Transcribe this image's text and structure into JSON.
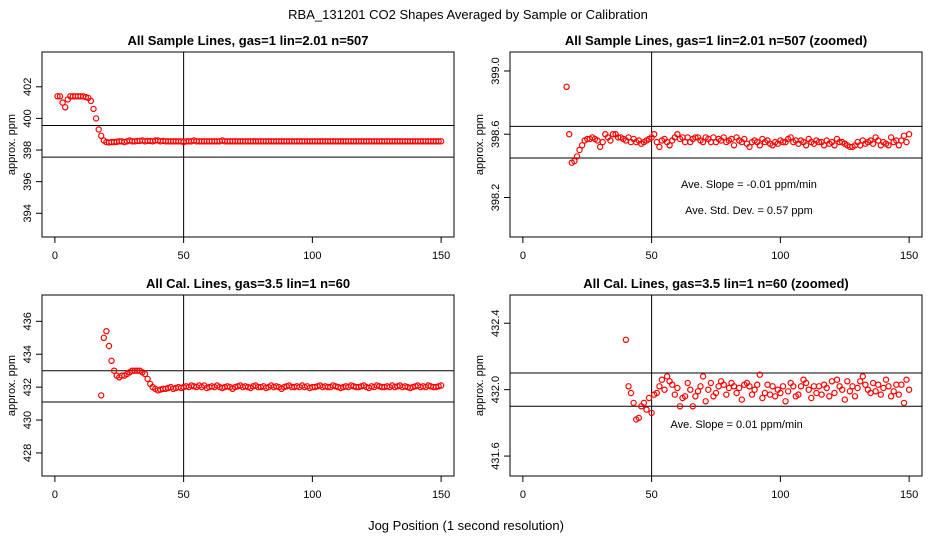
{
  "page": {
    "main_title": "RBA_131201  CO2 Shapes Averaged by Sample or Calibration",
    "xlabel": "Jog Position (1 second resolution)"
  },
  "colors": {
    "points": "#ff0000",
    "axis": "#000000",
    "background": "#ffffff"
  },
  "chart_data": [
    {
      "type": "scatter",
      "title": "All Sample Lines, gas=1 lin=2.01 n=507",
      "ylabel": "approx. ppm",
      "xlim": [
        -5,
        155
      ],
      "ylim": [
        392.5,
        404.2
      ],
      "xticks": [
        0,
        50,
        100,
        150
      ],
      "xtick_labels": [
        "0",
        "50",
        "100",
        "150"
      ],
      "yticks": [
        394,
        396,
        398,
        400,
        402
      ],
      "ytick_labels": [
        "394",
        "396",
        "398",
        "400",
        "402"
      ],
      "hlines": [
        399.55,
        397.55
      ],
      "vlines": [
        50
      ],
      "annotations": [],
      "x": [
        1,
        2,
        3,
        4,
        5,
        6,
        7,
        8,
        9,
        10,
        11,
        12,
        13,
        14,
        15,
        16,
        17,
        18,
        19,
        20,
        21,
        22,
        23,
        24,
        25,
        26,
        27,
        28,
        29,
        30,
        31,
        32,
        33,
        34,
        35,
        36,
        37,
        38,
        39,
        40,
        41,
        42,
        43,
        44,
        45,
        46,
        47,
        48,
        49,
        50,
        51,
        52,
        53,
        54,
        55,
        56,
        57,
        58,
        59,
        60,
        61,
        62,
        63,
        64,
        65,
        66,
        67,
        68,
        69,
        70,
        71,
        72,
        73,
        74,
        75,
        76,
        77,
        78,
        79,
        80,
        81,
        82,
        83,
        84,
        85,
        86,
        87,
        88,
        89,
        90,
        91,
        92,
        93,
        94,
        95,
        96,
        97,
        98,
        99,
        100,
        101,
        102,
        103,
        104,
        105,
        106,
        107,
        108,
        109,
        110,
        111,
        112,
        113,
        114,
        115,
        116,
        117,
        118,
        119,
        120,
        121,
        122,
        123,
        124,
        125,
        126,
        127,
        128,
        129,
        130,
        131,
        132,
        133,
        134,
        135,
        136,
        137,
        138,
        139,
        140,
        141,
        142,
        143,
        144,
        145,
        146,
        147,
        148,
        149,
        150
      ],
      "y": [
        401.4,
        401.4,
        401.0,
        400.7,
        401.2,
        401.4,
        401.4,
        401.4,
        401.4,
        401.4,
        401.4,
        401.35,
        401.3,
        401.1,
        400.6,
        400.0,
        399.3,
        398.9,
        398.6,
        398.5,
        398.48,
        398.5,
        398.5,
        398.52,
        398.55,
        398.55,
        398.5,
        398.55,
        398.6,
        398.55,
        398.55,
        398.58,
        398.58,
        398.6,
        398.55,
        398.58,
        398.58,
        398.55,
        398.6,
        398.6,
        398.55,
        398.58,
        398.55,
        398.55,
        398.55,
        398.55,
        398.55,
        398.55,
        398.55,
        398.5,
        398.55,
        398.55,
        398.55,
        398.6,
        398.55,
        398.55,
        398.55,
        398.55,
        398.55,
        398.55,
        398.55,
        398.55,
        398.55,
        398.55,
        398.6,
        398.55,
        398.55,
        398.55,
        398.55,
        398.55,
        398.55,
        398.55,
        398.55,
        398.55,
        398.55,
        398.55,
        398.55,
        398.55,
        398.55,
        398.55,
        398.55,
        398.55,
        398.55,
        398.55,
        398.55,
        398.55,
        398.55,
        398.55,
        398.55,
        398.55,
        398.55,
        398.55,
        398.55,
        398.55,
        398.55,
        398.55,
        398.55,
        398.55,
        398.55,
        398.55,
        398.55,
        398.55,
        398.55,
        398.55,
        398.55,
        398.55,
        398.55,
        398.55,
        398.55,
        398.55,
        398.55,
        398.55,
        398.55,
        398.55,
        398.55,
        398.55,
        398.55,
        398.55,
        398.55,
        398.55,
        398.55,
        398.55,
        398.55,
        398.55,
        398.55,
        398.55,
        398.55,
        398.55,
        398.55,
        398.55,
        398.55,
        398.55,
        398.55,
        398.55,
        398.55,
        398.55,
        398.55,
        398.55,
        398.55,
        398.55,
        398.55,
        398.55,
        398.55,
        398.55,
        398.55,
        398.55,
        398.55,
        398.55,
        398.55,
        398.55
      ]
    },
    {
      "type": "scatter",
      "title": "All Sample Lines, gas=1 lin=2.01 n=507 (zoomed)",
      "ylabel": "approx. ppm",
      "xlim": [
        -5,
        155
      ],
      "ylim": [
        397.95,
        399.12
      ],
      "xticks": [
        0,
        50,
        100,
        150
      ],
      "xtick_labels": [
        "0",
        "50",
        "100",
        "150"
      ],
      "yticks": [
        398.2,
        398.6,
        399.0
      ],
      "ytick_labels": [
        "398.2",
        "398.6",
        "399.0"
      ],
      "hlines": [
        398.65,
        398.45
      ],
      "vlines": [
        50
      ],
      "annotations": [
        "Ave. Slope =  -0.01  ppm/min",
        "Ave. Std. Dev. =  0.57  ppm"
      ],
      "x": [
        17,
        18,
        19,
        20,
        21,
        22,
        23,
        24,
        25,
        26,
        27,
        28,
        29,
        30,
        31,
        32,
        33,
        34,
        35,
        36,
        37,
        38,
        39,
        40,
        41,
        42,
        43,
        44,
        45,
        46,
        47,
        48,
        49,
        50,
        51,
        52,
        53,
        54,
        55,
        56,
        57,
        58,
        59,
        60,
        61,
        62,
        63,
        64,
        65,
        66,
        67,
        68,
        69,
        70,
        71,
        72,
        73,
        74,
        75,
        76,
        77,
        78,
        79,
        80,
        81,
        82,
        83,
        84,
        85,
        86,
        87,
        88,
        89,
        90,
        91,
        92,
        93,
        94,
        95,
        96,
        97,
        98,
        99,
        100,
        101,
        102,
        103,
        104,
        105,
        106,
        107,
        108,
        109,
        110,
        111,
        112,
        113,
        114,
        115,
        116,
        117,
        118,
        119,
        120,
        121,
        122,
        123,
        124,
        125,
        126,
        127,
        128,
        129,
        130,
        131,
        132,
        133,
        134,
        135,
        136,
        137,
        138,
        139,
        140,
        141,
        142,
        143,
        144,
        145,
        146,
        147,
        148,
        149,
        150
      ],
      "y": [
        398.9,
        398.6,
        398.42,
        398.43,
        398.46,
        398.5,
        398.53,
        398.56,
        398.57,
        398.57,
        398.58,
        398.57,
        398.56,
        398.52,
        398.55,
        398.6,
        398.58,
        398.56,
        398.6,
        398.6,
        398.58,
        398.58,
        398.57,
        398.56,
        398.58,
        398.55,
        398.57,
        398.55,
        398.56,
        398.54,
        398.55,
        398.56,
        398.57,
        398.58,
        398.6,
        398.55,
        398.52,
        398.56,
        398.57,
        398.55,
        398.53,
        398.56,
        398.58,
        398.6,
        398.57,
        398.58,
        398.55,
        398.58,
        398.55,
        398.57,
        398.58,
        398.58,
        398.56,
        398.55,
        398.58,
        398.57,
        398.55,
        398.58,
        398.55,
        398.57,
        398.56,
        398.58,
        398.55,
        398.56,
        398.57,
        398.53,
        398.58,
        398.56,
        398.55,
        398.57,
        398.54,
        398.52,
        398.55,
        398.56,
        398.55,
        398.53,
        398.57,
        398.55,
        398.56,
        398.54,
        398.53,
        398.55,
        398.54,
        398.56,
        398.55,
        398.55,
        398.57,
        398.58,
        398.55,
        398.56,
        398.54,
        398.56,
        398.55,
        398.53,
        398.57,
        398.55,
        398.54,
        398.56,
        398.55,
        398.55,
        398.53,
        398.56,
        398.54,
        398.55,
        398.53,
        398.57,
        398.55,
        398.55,
        398.54,
        398.53,
        398.52,
        398.52,
        398.53,
        398.55,
        398.53,
        398.56,
        398.54,
        398.55,
        398.56,
        398.54,
        398.58,
        398.56,
        398.53,
        398.55,
        398.54,
        398.53,
        398.58,
        398.55,
        398.56,
        398.53,
        398.56,
        398.59,
        398.55,
        398.6
      ]
    },
    {
      "type": "scatter",
      "title": "All Cal. Lines, gas=3.5 lin=1 n=60",
      "ylabel": "approx. ppm",
      "xlim": [
        -5,
        155
      ],
      "ylim": [
        426.6,
        437.6
      ],
      "xticks": [
        0,
        50,
        100,
        150
      ],
      "xtick_labels": [
        "0",
        "50",
        "100",
        "150"
      ],
      "yticks": [
        428,
        430,
        432,
        434,
        436
      ],
      "ytick_labels": [
        "428",
        "430",
        "432",
        "434",
        "436"
      ],
      "hlines": [
        433.0,
        431.1
      ],
      "vlines": [
        50
      ],
      "annotations": [],
      "x": [
        18,
        19,
        20,
        21,
        22,
        23,
        24,
        25,
        26,
        27,
        28,
        29,
        30,
        31,
        32,
        33,
        34,
        35,
        36,
        37,
        38,
        39,
        40,
        41,
        42,
        43,
        44,
        45,
        46,
        47,
        48,
        49,
        50,
        51,
        52,
        53,
        54,
        55,
        56,
        57,
        58,
        59,
        60,
        61,
        62,
        63,
        64,
        65,
        66,
        67,
        68,
        69,
        70,
        71,
        72,
        73,
        74,
        75,
        76,
        77,
        78,
        79,
        80,
        81,
        82,
        83,
        84,
        85,
        86,
        87,
        88,
        89,
        90,
        91,
        92,
        93,
        94,
        95,
        96,
        97,
        98,
        99,
        100,
        101,
        102,
        103,
        104,
        105,
        106,
        107,
        108,
        109,
        110,
        111,
        112,
        113,
        114,
        115,
        116,
        117,
        118,
        119,
        120,
        121,
        122,
        123,
        124,
        125,
        126,
        127,
        128,
        129,
        130,
        131,
        132,
        133,
        134,
        135,
        136,
        137,
        138,
        139,
        140,
        141,
        142,
        143,
        144,
        145,
        146,
        147,
        148,
        149,
        150
      ],
      "y": [
        431.5,
        435.0,
        435.4,
        434.5,
        433.6,
        433.0,
        432.7,
        432.6,
        432.7,
        432.7,
        432.8,
        432.9,
        433.0,
        433.0,
        433.0,
        433.0,
        432.9,
        432.8,
        432.5,
        432.2,
        432.0,
        431.9,
        431.8,
        431.85,
        431.9,
        431.9,
        431.95,
        432.0,
        431.9,
        431.95,
        432.0,
        431.95,
        432.0,
        432.05,
        432.0,
        432.1,
        432.05,
        432.0,
        432.1,
        432.0,
        432.1,
        431.95,
        432.0,
        432.05,
        432.0,
        432.1,
        432.0,
        431.95,
        432.0,
        432.05,
        432.0,
        431.9,
        432.0,
        432.05,
        432.1,
        432.0,
        432.05,
        432.0,
        431.95,
        432.05,
        432.1,
        432.0,
        432.0,
        432.05,
        431.95,
        432.0,
        432.1,
        432.0,
        432.05,
        432.0,
        431.9,
        432.0,
        432.05,
        432.1,
        432.0,
        432.0,
        432.05,
        432.0,
        432.1,
        432.0,
        432.05,
        431.95,
        432.0,
        432.0,
        432.05,
        432.1,
        432.0,
        432.05,
        432.0,
        432.0,
        432.1,
        432.05,
        432.0,
        431.95,
        432.0,
        432.05,
        432.0,
        432.1,
        432.05,
        432.0,
        432.0,
        432.05,
        432.1,
        432.0,
        431.95,
        432.05,
        432.0,
        432.1,
        432.05,
        432.0,
        432.0,
        432.05,
        432.0,
        432.1,
        432.0,
        432.05,
        432.1,
        432.0,
        432.05,
        432.0,
        431.95,
        432.0,
        432.05,
        432.1,
        432.0,
        432.05,
        432.0,
        432.1,
        432.05,
        432.0,
        432.0,
        432.05,
        432.1
      ]
    },
    {
      "type": "scatter",
      "title": "All Cal. Lines, gas=3.5 lin=1 n=60 (zoomed)",
      "ylabel": "approx. ppm",
      "xlim": [
        -5,
        155
      ],
      "ylim": [
        431.48,
        432.57
      ],
      "xticks": [
        0,
        50,
        100,
        150
      ],
      "xtick_labels": [
        "0",
        "50",
        "100",
        "150"
      ],
      "yticks": [
        431.6,
        432.0,
        432.4
      ],
      "ytick_labels": [
        "431.6",
        "432.0",
        "432.4"
      ],
      "hlines": [
        432.1,
        431.9
      ],
      "vlines": [
        50
      ],
      "annotations": [
        "Ave. Slope =  0.01  ppm/min"
      ],
      "x": [
        40,
        41,
        42,
        43,
        44,
        45,
        46,
        47,
        48,
        49,
        50,
        51,
        52,
        53,
        54,
        55,
        56,
        57,
        58,
        59,
        60,
        61,
        62,
        63,
        64,
        65,
        66,
        67,
        68,
        69,
        70,
        71,
        72,
        73,
        74,
        75,
        76,
        77,
        78,
        79,
        80,
        81,
        82,
        83,
        84,
        85,
        86,
        87,
        88,
        89,
        90,
        91,
        92,
        93,
        94,
        95,
        96,
        97,
        98,
        99,
        100,
        101,
        102,
        103,
        104,
        105,
        106,
        107,
        108,
        109,
        110,
        111,
        112,
        113,
        114,
        115,
        116,
        117,
        118,
        119,
        120,
        121,
        122,
        123,
        124,
        125,
        126,
        127,
        128,
        129,
        130,
        131,
        132,
        133,
        134,
        135,
        136,
        137,
        138,
        139,
        140,
        141,
        142,
        143,
        144,
        145,
        146,
        147,
        148,
        149,
        150
      ],
      "y": [
        432.3,
        432.02,
        431.98,
        431.92,
        431.82,
        431.83,
        431.9,
        431.92,
        431.88,
        431.95,
        431.86,
        431.97,
        431.98,
        432.02,
        432.06,
        432.0,
        432.08,
        432.05,
        432.03,
        431.97,
        432.01,
        431.9,
        431.95,
        431.96,
        432.04,
        432.0,
        431.9,
        431.96,
        431.99,
        432.02,
        432.08,
        431.93,
        432.0,
        432.04,
        431.96,
        431.98,
        432.02,
        432.05,
        432.03,
        431.97,
        432.01,
        432.04,
        432.02,
        431.98,
        432.01,
        431.94,
        432.03,
        432.04,
        432.02,
        431.97,
        432.0,
        432.03,
        432.09,
        431.95,
        431.98,
        432.03,
        431.97,
        432.02,
        431.96,
        432.0,
        431.98,
        432.02,
        431.93,
        431.99,
        432.04,
        432.02,
        431.96,
        431.97,
        432.02,
        432.06,
        432.04,
        432.0,
        431.95,
        432.02,
        431.98,
        432.02,
        431.97,
        432.03,
        432.01,
        431.96,
        432.05,
        431.98,
        432.06,
        432.02,
        432.0,
        431.94,
        432.05,
        431.99,
        432.02,
        431.96,
        432.01,
        432.05,
        432.08,
        432.03,
        432.0,
        431.98,
        432.04,
        431.99,
        432.03,
        431.97,
        432.01,
        432.06,
        432.02,
        431.96,
        431.99,
        432.03,
        431.97,
        432.03,
        431.92,
        432.06,
        432.0
      ]
    }
  ]
}
